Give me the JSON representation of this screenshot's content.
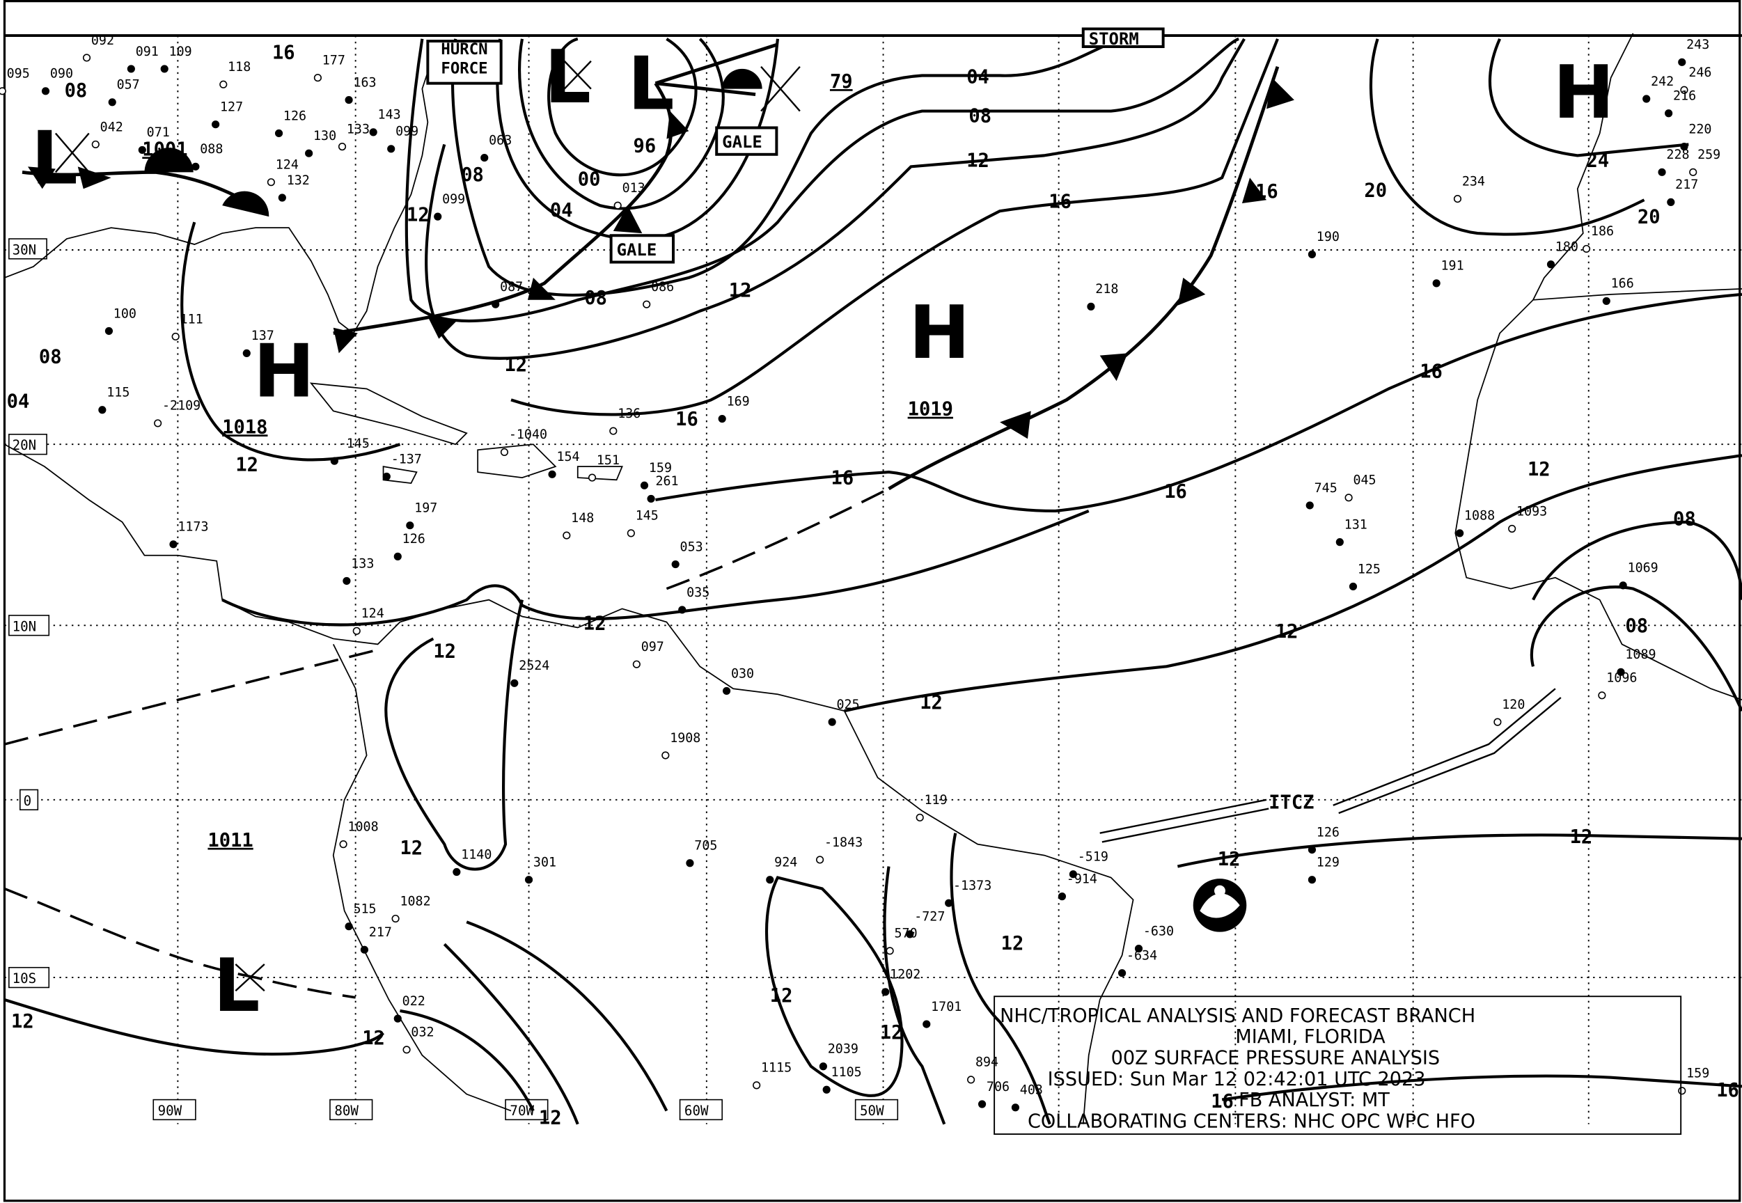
{
  "title_block": {
    "line1": "NHC/TROPICAL ANALYSIS AND FORECAST BRANCH",
    "line2": "MIAMI, FLORIDA",
    "line3": "00Z SURFACE PRESSURE ANALYSIS",
    "line4": "ISSUED: Sun Mar 12 02:42:01 UTC 2023",
    "line5": "FB ANALYST: MT",
    "line6": "COLLABORATING CENTERS: NHC OPC WPC HFO"
  },
  "grid_labels": {
    "lat": [
      "30N",
      "20N",
      "10N",
      "0",
      "10S"
    ],
    "lon": [
      "90W",
      "80W",
      "70W",
      "60W",
      "50W"
    ]
  },
  "pressure_centers": [
    {
      "type": "H",
      "value": "1019"
    },
    {
      "type": "H",
      "value": "1018"
    },
    {
      "type": "H",
      "value": ""
    },
    {
      "type": "L",
      "value": "1001"
    },
    {
      "type": "L",
      "value": ""
    },
    {
      "type": "L",
      "value": ""
    },
    {
      "type": "L",
      "value": "1011"
    },
    {
      "type": "",
      "value": "79"
    }
  ],
  "warnings": [
    "HURCN FORCE",
    "GALE",
    "GALE",
    "STORM"
  ],
  "features": {
    "itcz": "ITCZ"
  },
  "isobar_labels": [
    "04",
    "08",
    "12",
    "16",
    "16",
    "20",
    "24",
    "20",
    "96",
    "00",
    "04",
    "08",
    "12",
    "08",
    "12",
    "12",
    "16",
    "16",
    "16",
    "16",
    "12",
    "08",
    "08",
    "12",
    "12",
    "12",
    "12",
    "12",
    "12",
    "12",
    "12",
    "12",
    "12",
    "12",
    "12",
    "12",
    "08",
    "04",
    "08",
    "16",
    "16",
    "16",
    "12"
  ],
  "station_values": [
    "092",
    "091",
    "109",
    "095",
    "090",
    "057",
    "042",
    "071",
    "088",
    "118",
    "127",
    "126",
    "124",
    "132",
    "130",
    "133",
    "143",
    "163",
    "177",
    "099",
    "063",
    "013",
    "099",
    "087",
    "086",
    "190",
    "218",
    "234",
    "191",
    "166",
    "136",
    "169",
    "197",
    "148",
    "126",
    "133",
    "124",
    "115",
    "100",
    "111",
    "137",
    "154",
    "151",
    "159",
    "261",
    "145",
    "053",
    "035",
    "097",
    "030",
    "025",
    "119",
    "126",
    "129",
    "120",
    "125",
    "745",
    "045",
    "131",
    "1088",
    "1093",
    "1069",
    "1089",
    "1096",
    "924",
    "705",
    "1908",
    "301",
    "1140",
    "1082",
    "217",
    "515",
    "1008",
    "2524",
    "022",
    "032",
    "2039",
    "1105",
    "1115",
    "1202",
    "1701",
    "894",
    "706",
    "403",
    "159",
    "243",
    "242",
    "246",
    "216",
    "220",
    "259",
    "217",
    "228",
    "186",
    "180",
    "1173",
    "-1040",
    "-137",
    "-145",
    "-2109",
    "-634",
    "-630",
    "-1843",
    "-1373",
    "-727",
    "570",
    "-519",
    "-914"
  ],
  "logo": "NOAA"
}
